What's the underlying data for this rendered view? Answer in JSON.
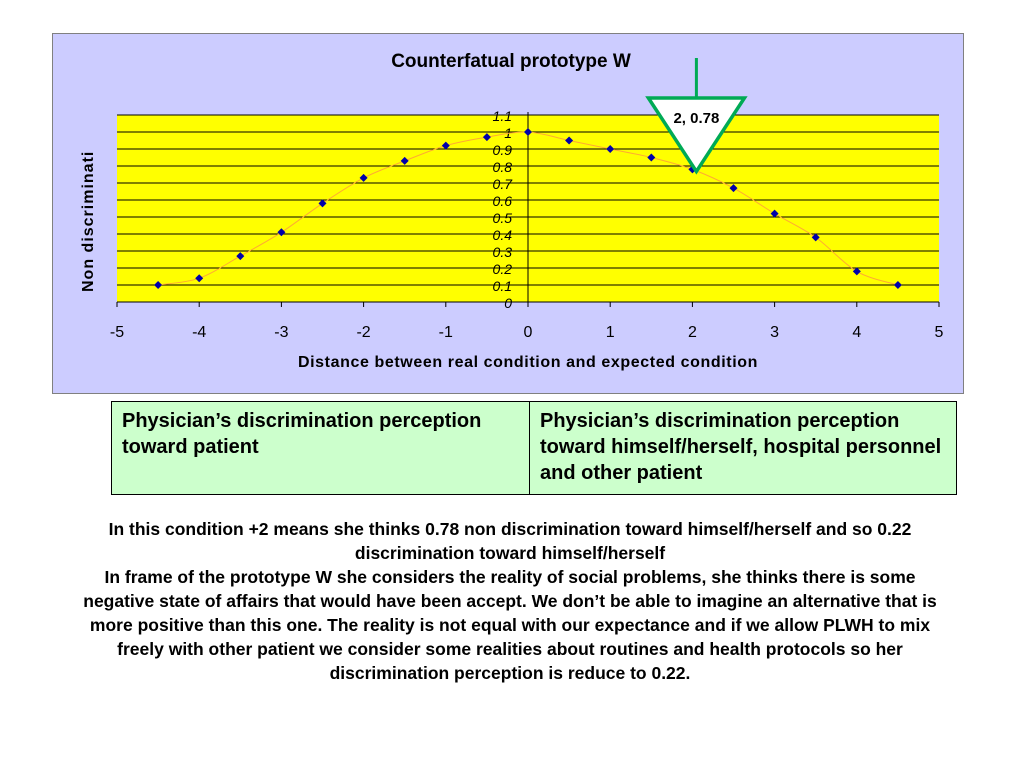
{
  "chart_data": {
    "type": "scatter",
    "title": "Counterfatual prototype W",
    "xlabel": "Distance between real condition and expected condition",
    "ylabel": "Non discriminati",
    "xlim": [
      -5,
      5
    ],
    "ylim": [
      0,
      1.1
    ],
    "x_ticks": [
      "-5",
      "-4",
      "-3",
      "-2",
      "-1",
      "0",
      "1",
      "2",
      "3",
      "4",
      "5"
    ],
    "y_ticks": [
      "0",
      "0.1",
      "0.2",
      "0.3",
      "0.4",
      "0.5",
      "0.6",
      "0.7",
      "0.8",
      "0.9",
      "1",
      "1.1"
    ],
    "grid": true,
    "trendline": true,
    "points": [
      {
        "x": -4.5,
        "y": 0.1
      },
      {
        "x": -4.0,
        "y": 0.14
      },
      {
        "x": -3.5,
        "y": 0.27
      },
      {
        "x": -3.0,
        "y": 0.41
      },
      {
        "x": -2.5,
        "y": 0.58
      },
      {
        "x": -2.0,
        "y": 0.73
      },
      {
        "x": -1.5,
        "y": 0.83
      },
      {
        "x": -1.0,
        "y": 0.92
      },
      {
        "x": -0.5,
        "y": 0.97
      },
      {
        "x": 0.0,
        "y": 1.0
      },
      {
        "x": 0.5,
        "y": 0.95
      },
      {
        "x": 1.0,
        "y": 0.9
      },
      {
        "x": 1.5,
        "y": 0.85
      },
      {
        "x": 2.0,
        "y": 0.78
      },
      {
        "x": 2.5,
        "y": 0.67
      },
      {
        "x": 3.0,
        "y": 0.52
      },
      {
        "x": 3.5,
        "y": 0.38
      },
      {
        "x": 4.0,
        "y": 0.18
      },
      {
        "x": 4.5,
        "y": 0.1
      }
    ],
    "annotation": {
      "x": 2,
      "y": 0.78,
      "label": "2, 0.78"
    },
    "colors": {
      "outer_background": "#ccccff",
      "plot_background": "#ffff00",
      "marker": "#0000aa",
      "trendline": "#ffaa33",
      "annotation": "#00aa55",
      "annotation_text": "#1f3f8f"
    }
  },
  "legend_table": {
    "left": "Physician’s discrimination perception toward patient",
    "right": "Physician’s discrimination perception toward himself/herself, hospital personnel and other patient"
  },
  "explanation": {
    "line1": "In this condition +2 means she thinks 0.78 non discrimination toward himself/herself and so 0.22 discrimination toward himself/herself",
    "line2": "In frame of the prototype W she considers the reality of social problems, she thinks there is some negative state of affairs that would have been accept. We don’t be able to imagine an alternative that is more positive than this one. The reality is not equal with our expectance and if we allow PLWH to mix freely with other patient we consider some realities about routines and health protocols so her discrimination perception is reduce to  0.22."
  }
}
